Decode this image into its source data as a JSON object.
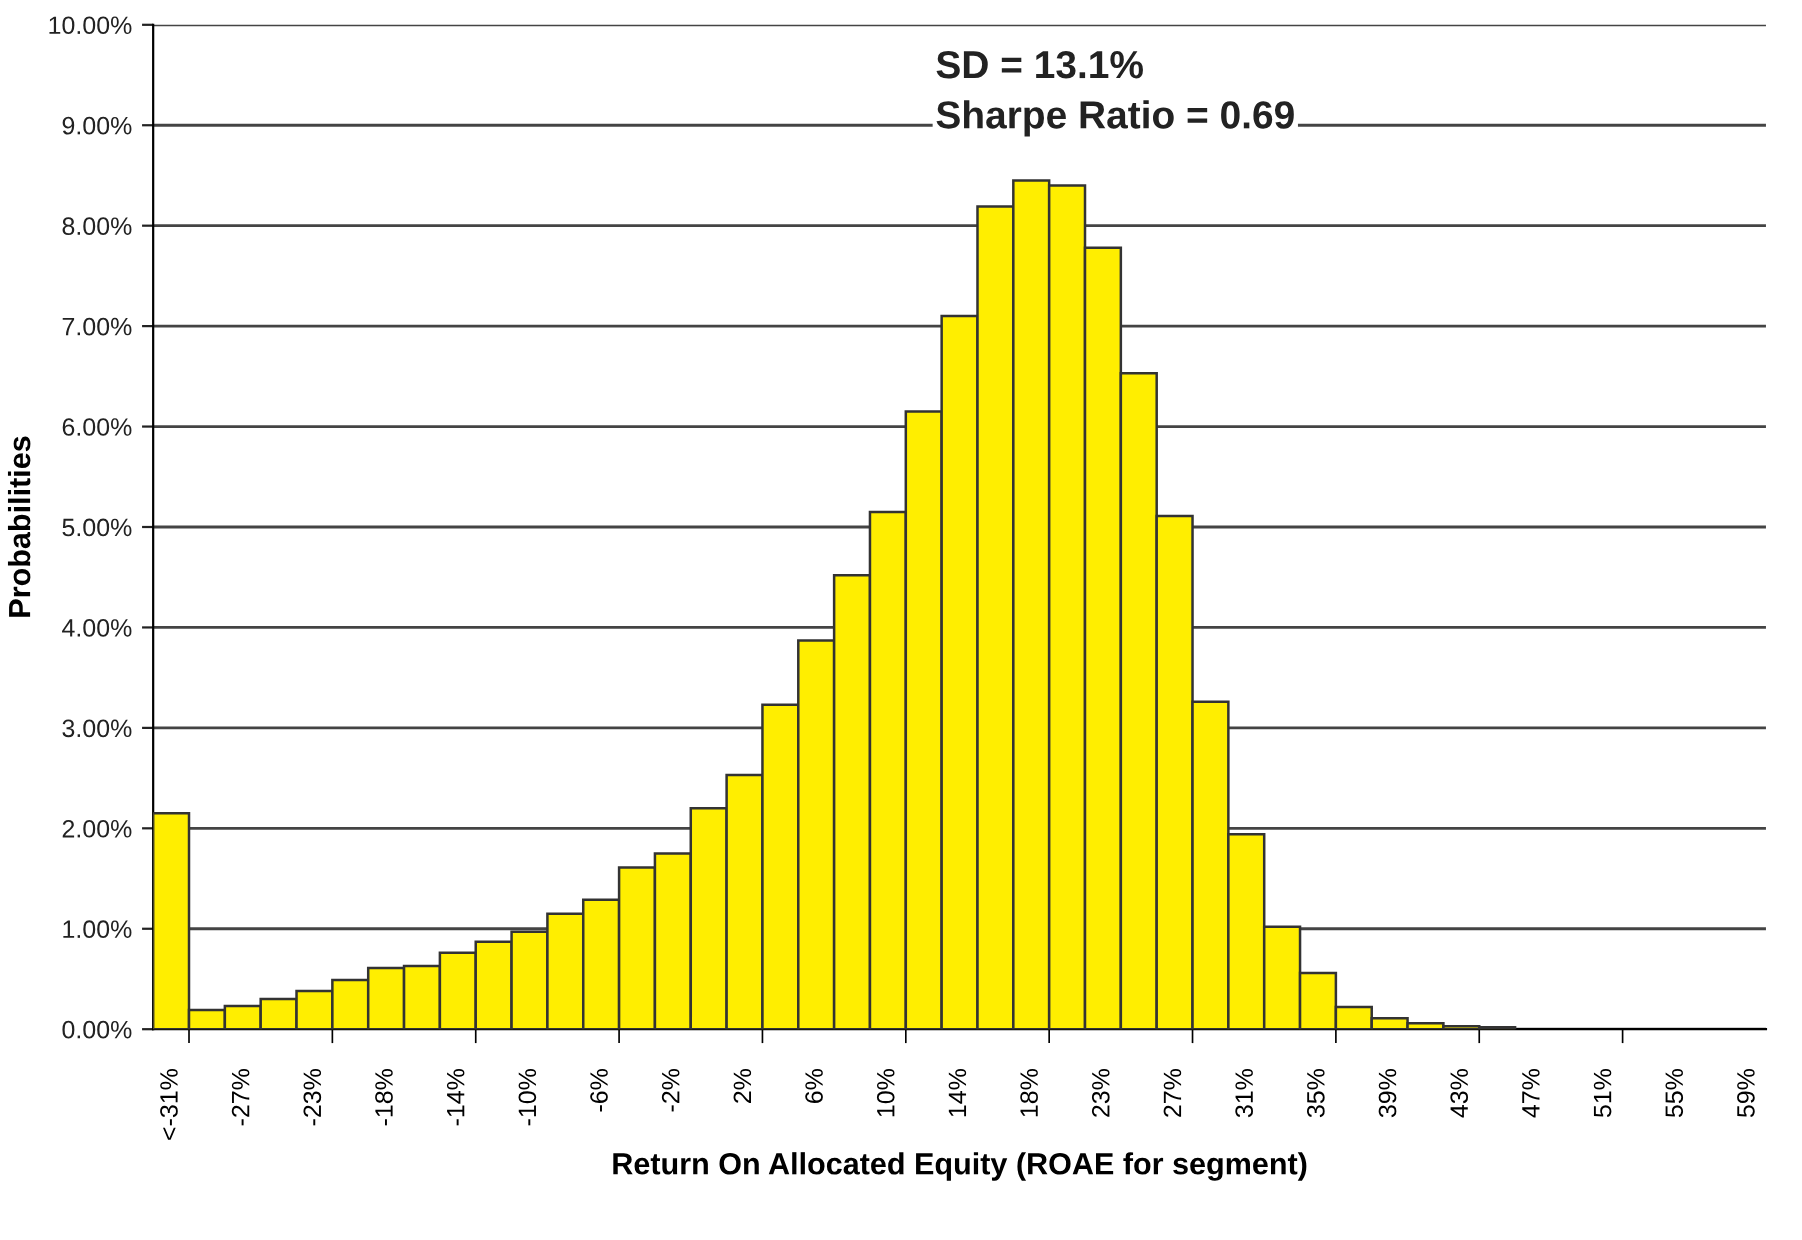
{
  "chart_data": {
    "type": "bar",
    "xlabel": "Return On Allocated Equity (ROAE for segment)",
    "ylabel": "Probabilities",
    "annotations": [
      "SD = 13.1%",
      "Sharpe Ratio = 0.69"
    ],
    "categories": [
      "<-31%",
      null,
      "-27%",
      null,
      "-23%",
      null,
      "-18%",
      null,
      "-14%",
      null,
      "-10%",
      null,
      "-6%",
      null,
      "-2%",
      null,
      "2%",
      null,
      "6%",
      null,
      "10%",
      null,
      "14%",
      null,
      "18%",
      null,
      "23%",
      null,
      "27%",
      null,
      "31%",
      null,
      "35%",
      null,
      "39%",
      null,
      "43%",
      null,
      "47%",
      null,
      "51%",
      null,
      "55%",
      null,
      "59%"
    ],
    "values": [
      2.15,
      0.19,
      0.23,
      0.3,
      0.38,
      0.49,
      0.61,
      0.63,
      0.76,
      0.87,
      0.97,
      1.15,
      1.29,
      1.61,
      1.75,
      2.2,
      2.53,
      3.23,
      3.87,
      4.52,
      5.15,
      6.15,
      7.1,
      8.19,
      8.45,
      8.4,
      7.78,
      6.53,
      5.11,
      3.26,
      1.94,
      1.02,
      0.56,
      0.22,
      0.11,
      0.06,
      0.03,
      0.02,
      0,
      0,
      0,
      0,
      0,
      0,
      0
    ],
    "color": "#ffee00",
    "ylim": [
      0,
      10
    ],
    "yticks": [
      {
        "value": 0,
        "label": "0.00%"
      },
      {
        "value": 1,
        "label": "1.00%"
      },
      {
        "value": 2,
        "label": "2.00%"
      },
      {
        "value": 3,
        "label": "3.00%"
      },
      {
        "value": 4,
        "label": "4.00%"
      },
      {
        "value": 5,
        "label": "5.00%"
      },
      {
        "value": 6,
        "label": "6.00%"
      },
      {
        "value": 7,
        "label": "7.00%"
      },
      {
        "value": 8,
        "label": "8.00%"
      },
      {
        "value": 9,
        "label": "9.00%"
      },
      {
        "value": 10,
        "label": "10.00%"
      }
    ],
    "grid": "y"
  }
}
